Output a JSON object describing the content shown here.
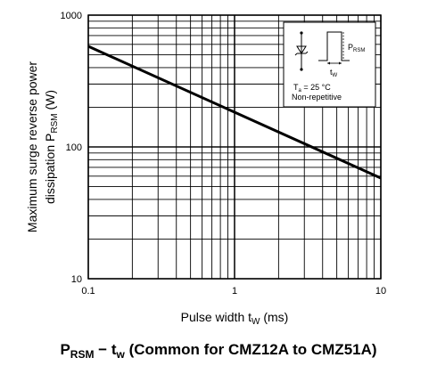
{
  "chart_data": {
    "type": "line",
    "x_scale": "log",
    "y_scale": "log",
    "xlim": [
      0.1,
      10
    ],
    "ylim": [
      10,
      1000
    ],
    "grid": true,
    "x_ticks": [
      "0.1",
      "1",
      "10"
    ],
    "y_ticks": [
      "1000",
      "100",
      "10"
    ],
    "ylabel_line1": "Maximum surge reverse power",
    "ylabel_line2_prefix": "dissipation  P",
    "ylabel_line2_sub": "RSM",
    "ylabel_line2_suffix": "  (W)",
    "xlabel_prefix": "Pulse width  t",
    "xlabel_sub": "W",
    "xlabel_suffix": "  (ms)",
    "series": [
      {
        "x": [
          0.1,
          10
        ],
        "y": [
          580,
          58
        ],
        "color": "#000000"
      }
    ],
    "inset": {
      "pulse_label": "P",
      "pulse_label_sub": "RSM",
      "width_label": "t",
      "width_label_sub": "W",
      "temp_label_prefix": "T",
      "temp_label_sub": "a",
      "temp_label_suffix": " = 25 °C",
      "mode_label": "Non-repetitive"
    },
    "caption": {
      "p": "P",
      "p_sub": "RSM",
      "dash": " − t",
      "t_sub": "w",
      "rest": " (Common for CMZ12A to CMZ51A)"
    }
  }
}
